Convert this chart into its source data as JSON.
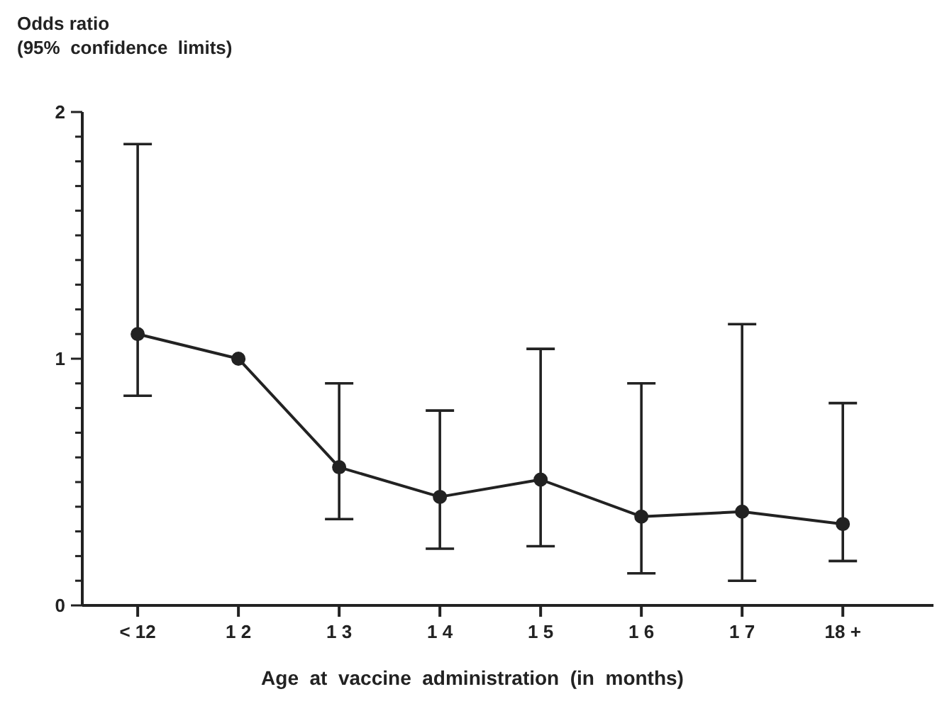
{
  "chart_data": {
    "type": "line",
    "ylabel": "Odds ratio\n(95%  confidence  limits)",
    "xlabel": "Age  at  vaccine  administration  (in  months)",
    "categories": [
      "< 12",
      "1 2",
      "1 3",
      "1 4",
      "1 5",
      "1 6",
      "1 7",
      "18 +"
    ],
    "series": [
      {
        "color": "#222222",
        "values": [
          1.1,
          1.0,
          0.56,
          0.44,
          0.51,
          0.36,
          0.38,
          0.33
        ],
        "errors": [
          [
            0.85,
            1.87
          ],
          null,
          [
            0.35,
            0.9
          ],
          [
            0.23,
            0.79
          ],
          [
            0.24,
            1.04
          ],
          [
            0.13,
            0.9
          ],
          [
            0.1,
            1.14
          ],
          [
            0.18,
            0.82
          ]
        ]
      }
    ],
    "ylim": [
      0,
      2
    ],
    "yticks": [
      0,
      {
        "value": 0.1,
        "label": null
      },
      {
        "value": 0.2,
        "label": null
      },
      {
        "value": 0.3,
        "label": null
      },
      {
        "value": 0.4,
        "label": null
      },
      {
        "value": 0.5,
        "label": null
      },
      {
        "value": 0.6,
        "label": null
      },
      {
        "value": 0.7,
        "label": null
      },
      {
        "value": 0.8,
        "label": null
      },
      {
        "value": 0.9,
        "label": null
      },
      1,
      {
        "value": 1.1,
        "label": null
      },
      {
        "value": 1.2,
        "label": null
      },
      {
        "value": 1.3,
        "label": null
      },
      {
        "value": 1.4,
        "label": null
      },
      {
        "value": 1.5,
        "label": null
      },
      {
        "value": 1.6,
        "label": null
      },
      {
        "value": 1.7,
        "label": null
      },
      {
        "value": 1.8,
        "label": null
      },
      {
        "value": 1.9,
        "label": null
      },
      2
    ],
    "marker": "circle",
    "line_style": "solid",
    "grid": false,
    "legend": false
  }
}
